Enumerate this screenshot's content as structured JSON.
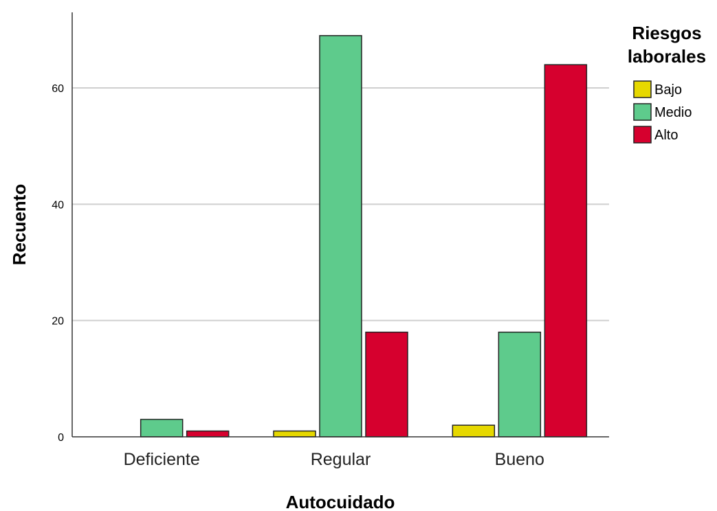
{
  "chart_data": {
    "type": "bar",
    "categories": [
      "Deficiente",
      "Regular",
      "Bueno"
    ],
    "series": [
      {
        "name": "Bajo",
        "color": "#e6d800",
        "values": [
          0,
          1,
          2
        ]
      },
      {
        "name": "Medio",
        "color": "#5ecb8c",
        "values": [
          3,
          69,
          18
        ]
      },
      {
        "name": "Alto",
        "color": "#d6002e",
        "values": [
          1,
          18,
          64
        ]
      }
    ],
    "xlabel": "Autocuidado",
    "ylabel": "Recuento",
    "ylim": [
      0,
      73
    ],
    "yticks": [
      0,
      20,
      40,
      60
    ],
    "grid": true,
    "legend": {
      "title_lines": [
        "Riesgos",
        "laborales"
      ],
      "position": "top-right"
    }
  }
}
